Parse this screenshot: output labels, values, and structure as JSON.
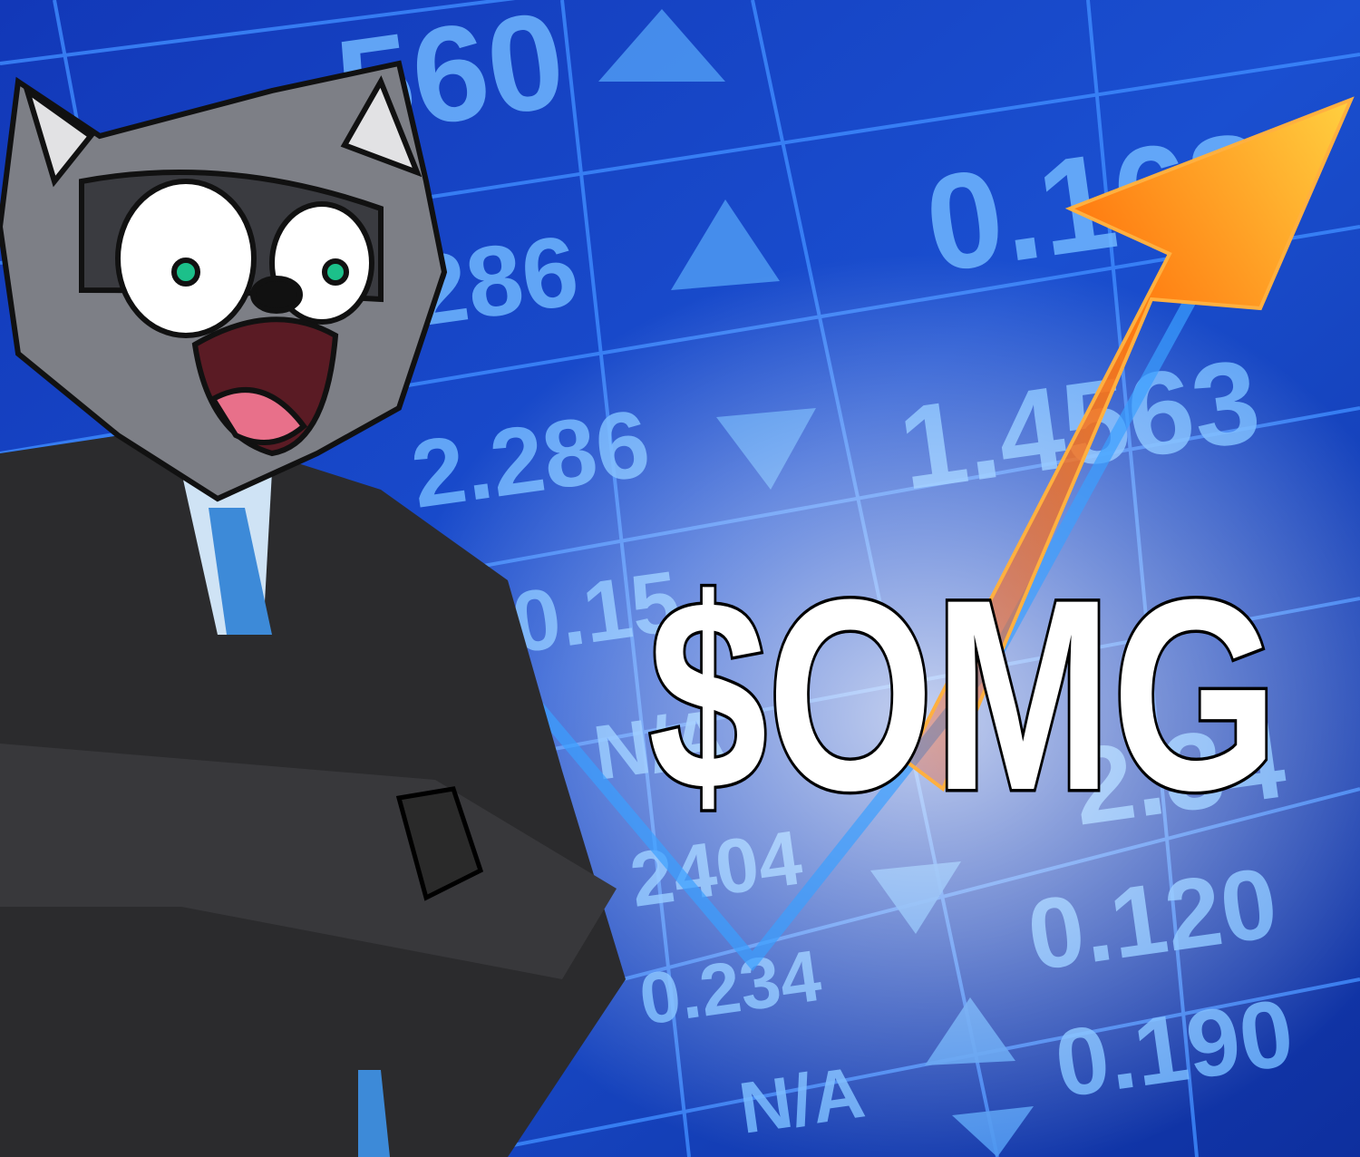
{
  "caption": "$OMG",
  "board": {
    "cells": [
      "560",
      "0.168",
      "286",
      "2.286",
      "1.4563",
      "0.15",
      "N/A",
      "2.34",
      "2404",
      "0.120",
      "0.234",
      "0.190",
      "N/A"
    ]
  }
}
